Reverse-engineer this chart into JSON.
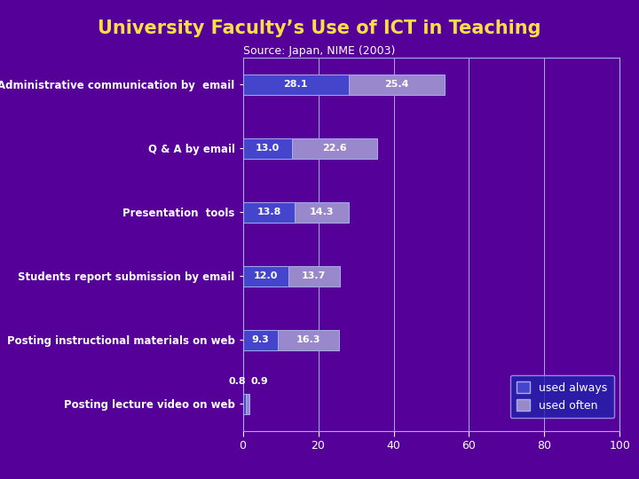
{
  "title": "University Faculty’s Use of ICT in Teaching",
  "subtitle": "Source: Japan, NIME (2003)",
  "categories": [
    "Administrative communication by  email",
    "Q & A by email",
    "Presentation  tools",
    "Students report submission by email",
    "Posting instructional materials on web",
    "Posting lecture video on web"
  ],
  "always_values": [
    28.1,
    13.0,
    13.8,
    12.0,
    9.3,
    0.8
  ],
  "often_values": [
    25.4,
    22.6,
    14.3,
    13.7,
    16.3,
    0.9
  ],
  "always_color": "#4444cc",
  "often_color": "#9988cc",
  "background_color": "#550099",
  "bar_edge_color": "#aaaaee",
  "grid_color": "#aaaaee",
  "title_color": "#ffdd44",
  "subtitle_color": "#ffffff",
  "label_color": "#ffffff",
  "tick_color": "#ffffff",
  "bar_label_color": "#ffffff",
  "xlim": [
    0,
    100
  ],
  "bar_height": 0.32,
  "legend_facecolor": "#2222aa",
  "legend_edgecolor": "#aaaaee",
  "legend_text_color": "#ffffff",
  "label_fontsize": 8.5,
  "title_fontsize": 15,
  "subtitle_fontsize": 9,
  "bar_label_fontsize": 8
}
